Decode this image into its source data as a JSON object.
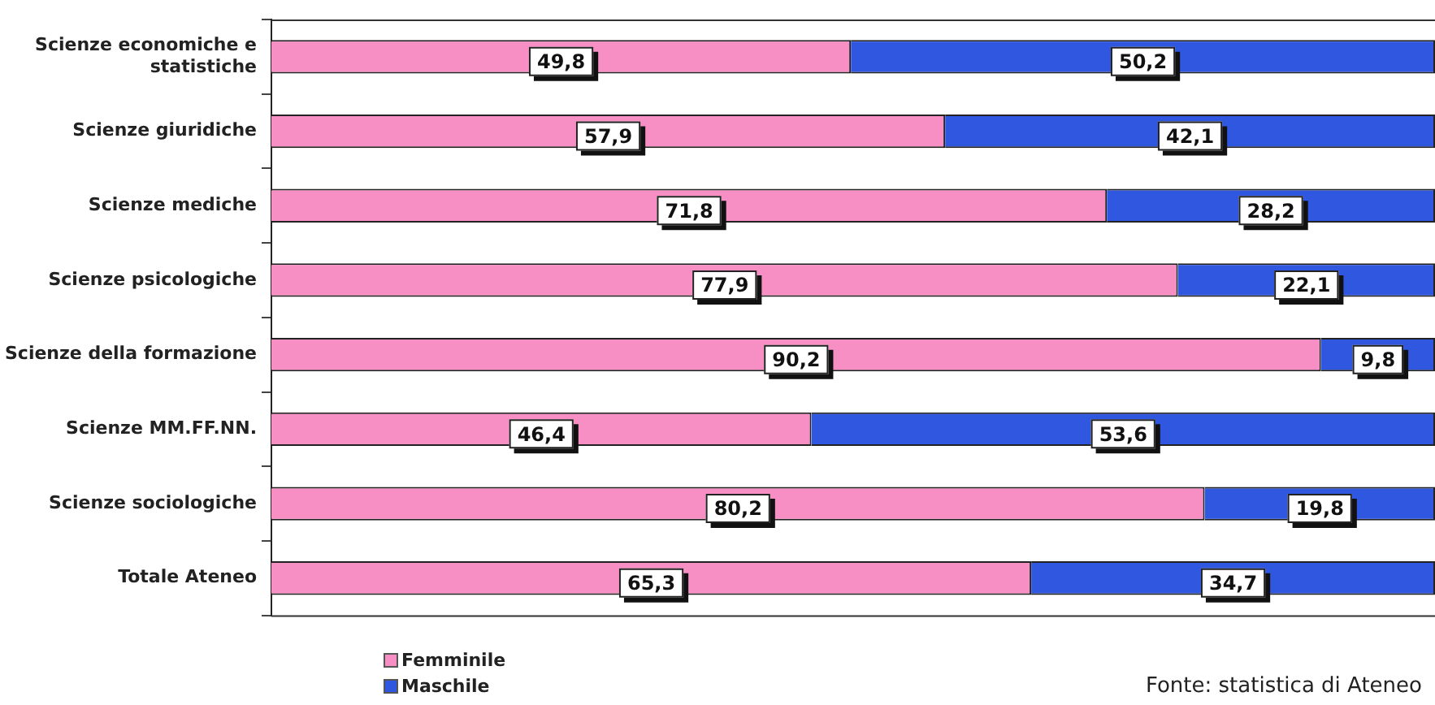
{
  "chart_data": {
    "type": "bar",
    "orientation": "horizontal",
    "stacked": true,
    "categories": [
      "Scienze economiche e statistiche",
      "Scienze giuridiche",
      "Scienze mediche",
      "Scienze psicologiche",
      "Scienze della formazione",
      "Scienze MM.FF.NN.",
      "Scienze sociologiche",
      "Totale Ateneo"
    ],
    "series": [
      {
        "name": "Femminile",
        "color": "#f78fc4",
        "values": [
          49.8,
          57.9,
          71.8,
          77.9,
          90.2,
          46.4,
          80.2,
          65.3
        ],
        "value_labels": [
          "49,8",
          "57,9",
          "71,8",
          "77,9",
          "90,2",
          "46,4",
          "80,2",
          "65,3"
        ]
      },
      {
        "name": "Maschile",
        "color": "#2f57e0",
        "values": [
          50.2,
          42.1,
          28.2,
          22.1,
          9.8,
          53.6,
          19.8,
          34.7
        ],
        "value_labels": [
          "50,2",
          "42,1",
          "28,2",
          "22,1",
          "9,8",
          "53,6",
          "19,8",
          "34,7"
        ]
      }
    ],
    "xlim": [
      0,
      100
    ],
    "tick_labels": "y",
    "grid": false,
    "legend": "bottom left",
    "annotations": [
      "Fonte: statistica di Ateneo"
    ]
  }
}
